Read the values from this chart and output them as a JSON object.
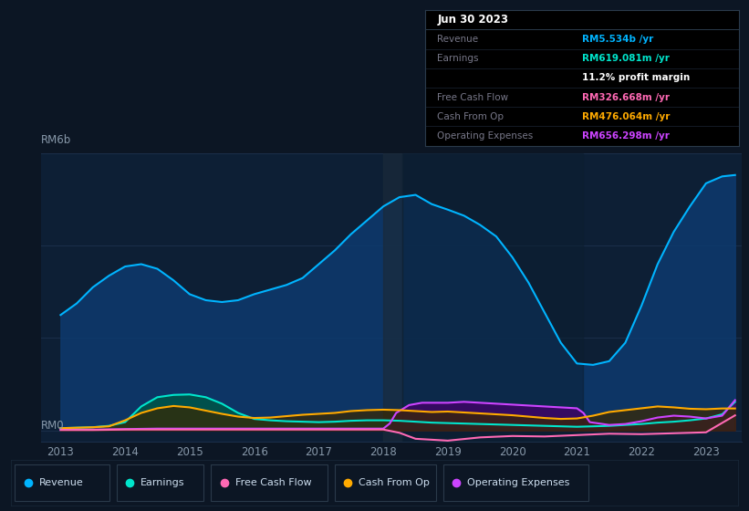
{
  "bg_color": "#0c1624",
  "plot_bg": "#0d1f35",
  "dark_bg": "#0c1624",
  "grid_color": "#1a2e48",
  "title_text": "Jun 30 2023",
  "info_box_rows": [
    {
      "label": "Revenue",
      "value": "RM5.534b /yr",
      "value_color": "#00b4ff"
    },
    {
      "label": "Earnings",
      "value": "RM619.081m /yr",
      "value_color": "#00e5cc"
    },
    {
      "label": "",
      "value": "11.2% profit margin",
      "value_color": "#ffffff"
    },
    {
      "label": "Free Cash Flow",
      "value": "RM326.668m /yr",
      "value_color": "#ff69b4"
    },
    {
      "label": "Cash From Op",
      "value": "RM476.064m /yr",
      "value_color": "#ffaa00"
    },
    {
      "label": "Operating Expenses",
      "value": "RM656.298m /yr",
      "value_color": "#cc44ff"
    }
  ],
  "ylabel_top": "RM6b",
  "ylabel_bottom": "RM0",
  "xtick_years": [
    2013,
    2014,
    2015,
    2016,
    2017,
    2018,
    2019,
    2020,
    2021,
    2022,
    2023
  ],
  "legend": [
    {
      "label": "Revenue",
      "color": "#00b4ff"
    },
    {
      "label": "Earnings",
      "color": "#00e5cc"
    },
    {
      "label": "Free Cash Flow",
      "color": "#ff69b4"
    },
    {
      "label": "Cash From Op",
      "color": "#ffaa00"
    },
    {
      "label": "Operating Expenses",
      "color": "#cc44ff"
    }
  ],
  "ylim": [
    -0.25,
    6.0
  ],
  "xlim": [
    2012.7,
    2023.55
  ],
  "revenue_x": [
    2013.0,
    2013.25,
    2013.5,
    2013.75,
    2014.0,
    2014.25,
    2014.5,
    2014.75,
    2015.0,
    2015.25,
    2015.5,
    2015.75,
    2016.0,
    2016.25,
    2016.5,
    2016.75,
    2017.0,
    2017.25,
    2017.5,
    2017.75,
    2018.0,
    2018.25,
    2018.5,
    2018.75,
    2019.0,
    2019.25,
    2019.5,
    2019.75,
    2020.0,
    2020.25,
    2020.5,
    2020.75,
    2021.0,
    2021.25,
    2021.5,
    2021.75,
    2022.0,
    2022.25,
    2022.5,
    2022.75,
    2023.0,
    2023.25,
    2023.45
  ],
  "revenue_y": [
    2.5,
    2.75,
    3.1,
    3.35,
    3.55,
    3.6,
    3.5,
    3.25,
    2.95,
    2.82,
    2.78,
    2.82,
    2.95,
    3.05,
    3.15,
    3.3,
    3.6,
    3.9,
    4.25,
    4.55,
    4.85,
    5.05,
    5.1,
    4.9,
    4.78,
    4.65,
    4.45,
    4.2,
    3.75,
    3.2,
    2.55,
    1.9,
    1.45,
    1.42,
    1.5,
    1.9,
    2.7,
    3.6,
    4.3,
    4.85,
    5.35,
    5.5,
    5.53
  ],
  "earnings_x": [
    2013.0,
    2013.25,
    2013.5,
    2013.75,
    2014.0,
    2014.25,
    2014.5,
    2014.75,
    2015.0,
    2015.25,
    2015.5,
    2015.75,
    2016.0,
    2016.25,
    2016.5,
    2016.75,
    2017.0,
    2017.25,
    2017.5,
    2017.75,
    2018.0,
    2018.25,
    2018.5,
    2018.75,
    2019.0,
    2019.25,
    2019.5,
    2019.75,
    2020.0,
    2020.25,
    2020.5,
    2020.75,
    2021.0,
    2021.25,
    2021.5,
    2021.75,
    2022.0,
    2022.25,
    2022.5,
    2022.75,
    2023.0,
    2023.25,
    2023.45
  ],
  "earnings_y": [
    0.05,
    0.06,
    0.07,
    0.1,
    0.18,
    0.52,
    0.72,
    0.77,
    0.78,
    0.72,
    0.58,
    0.38,
    0.25,
    0.22,
    0.2,
    0.19,
    0.18,
    0.19,
    0.21,
    0.22,
    0.22,
    0.21,
    0.19,
    0.17,
    0.16,
    0.15,
    0.14,
    0.13,
    0.12,
    0.11,
    0.1,
    0.09,
    0.08,
    0.09,
    0.1,
    0.12,
    0.14,
    0.17,
    0.19,
    0.22,
    0.26,
    0.35,
    0.619
  ],
  "fcf_x": [
    2013.0,
    2013.5,
    2014.0,
    2014.5,
    2015.0,
    2015.5,
    2016.0,
    2016.5,
    2017.0,
    2017.5,
    2018.0,
    2018.25,
    2018.5,
    2018.75,
    2019.0,
    2019.5,
    2020.0,
    2020.5,
    2021.0,
    2021.5,
    2022.0,
    2022.5,
    2023.0,
    2023.45
  ],
  "fcf_y": [
    0.01,
    0.01,
    0.02,
    0.02,
    0.02,
    0.02,
    0.02,
    0.02,
    0.02,
    0.02,
    0.02,
    -0.05,
    -0.18,
    -0.2,
    -0.22,
    -0.15,
    -0.12,
    -0.13,
    -0.1,
    -0.07,
    -0.08,
    -0.06,
    -0.04,
    0.327
  ],
  "cop_x": [
    2013.0,
    2013.25,
    2013.5,
    2013.75,
    2014.0,
    2014.25,
    2014.5,
    2014.75,
    2015.0,
    2015.25,
    2015.5,
    2015.75,
    2016.0,
    2016.25,
    2016.5,
    2016.75,
    2017.0,
    2017.25,
    2017.5,
    2017.75,
    2018.0,
    2018.25,
    2018.5,
    2018.75,
    2019.0,
    2019.25,
    2019.5,
    2019.75,
    2020.0,
    2020.25,
    2020.5,
    2020.75,
    2021.0,
    2021.25,
    2021.5,
    2021.75,
    2022.0,
    2022.25,
    2022.5,
    2022.75,
    2023.0,
    2023.25,
    2023.45
  ],
  "cop_y": [
    0.05,
    0.06,
    0.07,
    0.09,
    0.22,
    0.38,
    0.48,
    0.53,
    0.5,
    0.43,
    0.36,
    0.3,
    0.27,
    0.28,
    0.31,
    0.34,
    0.36,
    0.38,
    0.42,
    0.44,
    0.45,
    0.44,
    0.42,
    0.4,
    0.41,
    0.39,
    0.37,
    0.35,
    0.33,
    0.3,
    0.27,
    0.25,
    0.26,
    0.32,
    0.4,
    0.44,
    0.48,
    0.52,
    0.5,
    0.47,
    0.46,
    0.476,
    0.476
  ],
  "ope_x": [
    2013.0,
    2013.5,
    2014.0,
    2014.5,
    2015.0,
    2015.5,
    2016.0,
    2016.5,
    2017.0,
    2017.5,
    2018.0,
    2018.1,
    2018.2,
    2018.4,
    2018.6,
    2018.8,
    2019.0,
    2019.25,
    2019.5,
    2019.75,
    2020.0,
    2020.25,
    2020.5,
    2020.75,
    2021.0,
    2021.1,
    2021.2,
    2021.5,
    2021.75,
    2022.0,
    2022.25,
    2022.5,
    2022.75,
    2023.0,
    2023.25,
    2023.45
  ],
  "ope_y": [
    0.02,
    0.02,
    0.03,
    0.04,
    0.04,
    0.04,
    0.04,
    0.04,
    0.04,
    0.04,
    0.04,
    0.15,
    0.38,
    0.55,
    0.6,
    0.6,
    0.6,
    0.62,
    0.6,
    0.58,
    0.56,
    0.54,
    0.52,
    0.5,
    0.48,
    0.38,
    0.18,
    0.12,
    0.14,
    0.2,
    0.28,
    0.32,
    0.3,
    0.26,
    0.32,
    0.656
  ],
  "shading_x0": 2018.0,
  "shading_x1": 2018.3,
  "shading2_x0": 2018.3,
  "shading2_x1": 2021.1
}
